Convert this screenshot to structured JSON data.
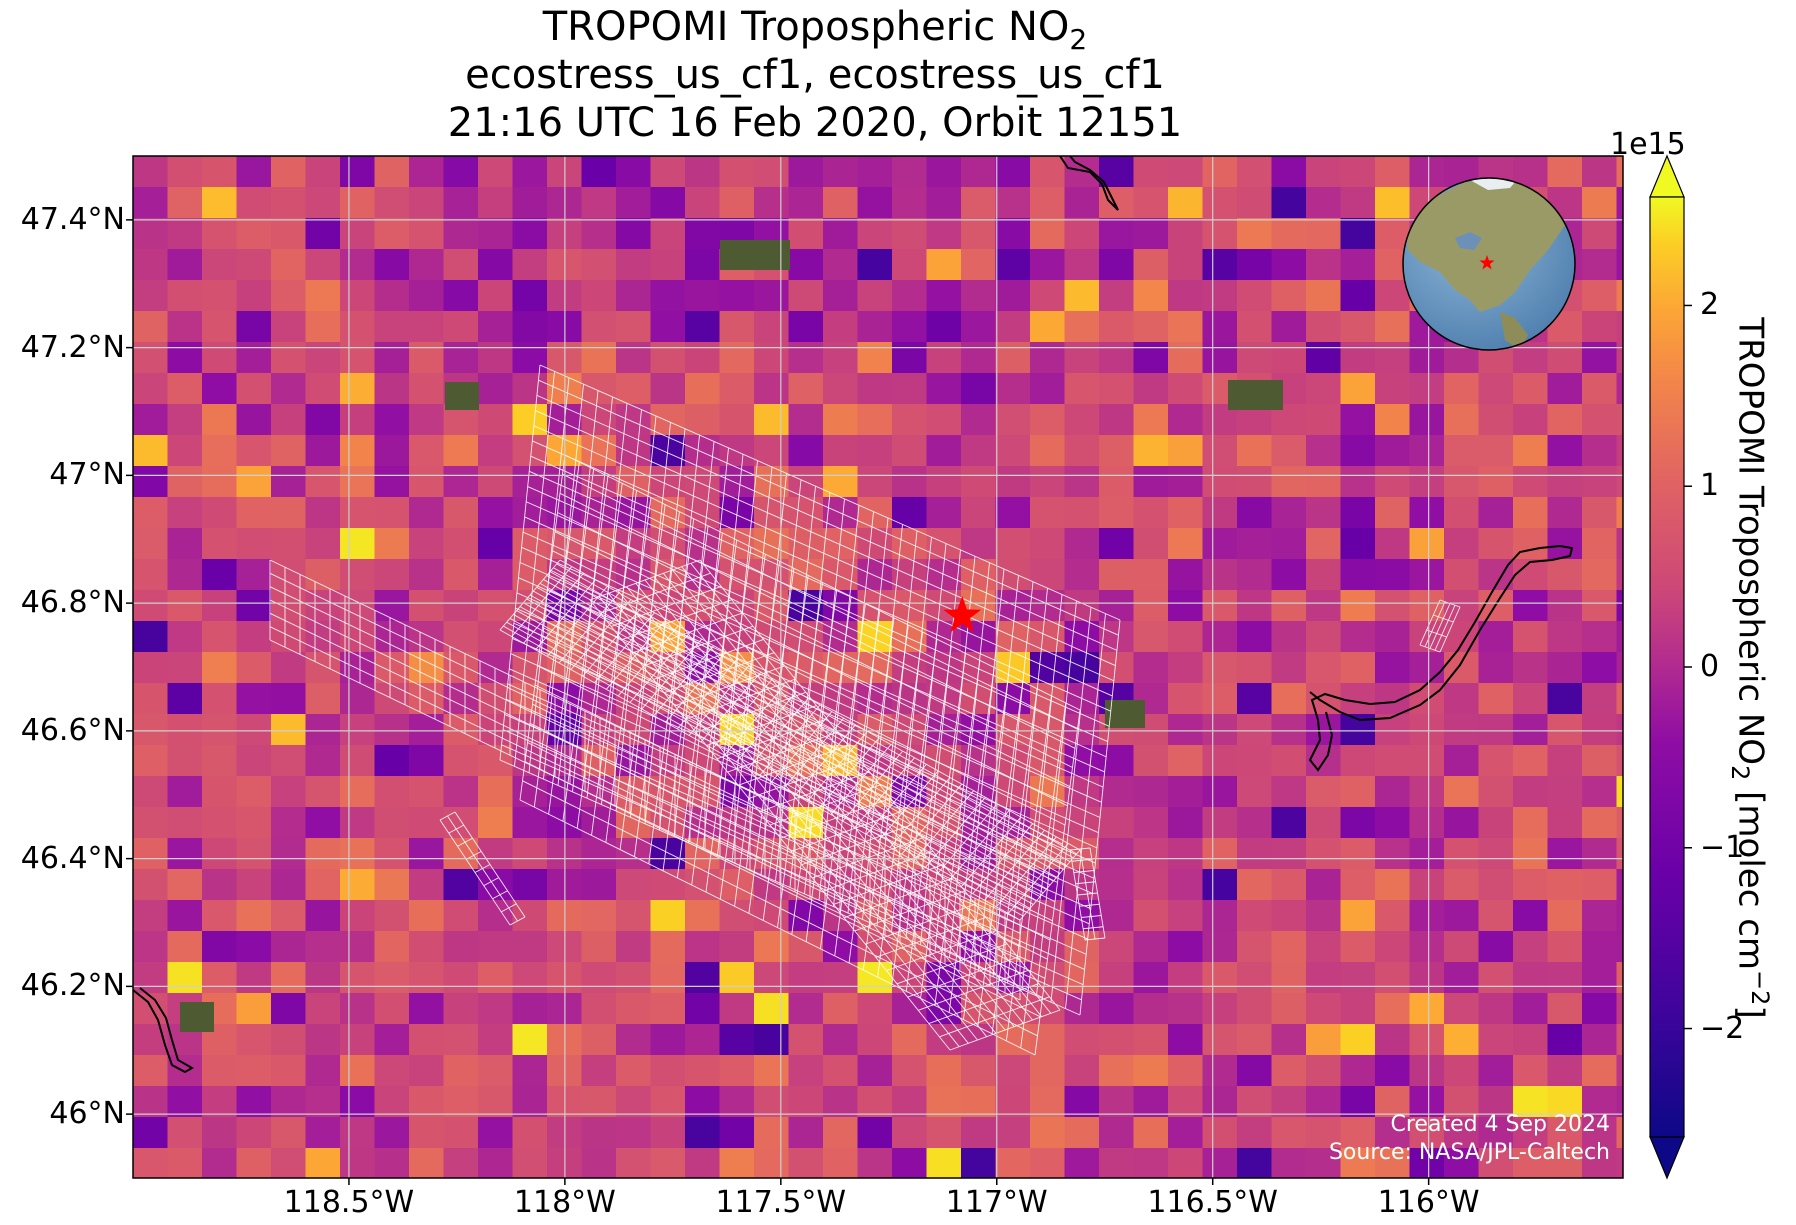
{
  "title": {
    "line1_main": "TROPOMI Tropospheric NO",
    "line1_sub": "2",
    "line2": "ecostress_us_cf1, ecostress_us_cf1",
    "line3": "21:16 UTC 16 Feb 2020, Orbit 12151"
  },
  "map": {
    "lat_ticks": [
      {
        "label": "47.4°N",
        "value": 47.4
      },
      {
        "label": "47.2°N",
        "value": 47.2
      },
      {
        "label": "47°N",
        "value": 47.0
      },
      {
        "label": "46.8°N",
        "value": 46.8
      },
      {
        "label": "46.6°N",
        "value": 46.6
      },
      {
        "label": "46.4°N",
        "value": 46.4
      },
      {
        "label": "46.2°N",
        "value": 46.2
      },
      {
        "label": "46°N",
        "value": 46.0
      }
    ],
    "lon_ticks": [
      {
        "label": "118.5°W",
        "value": -118.5
      },
      {
        "label": "118°W",
        "value": -118.0
      },
      {
        "label": "117.5°W",
        "value": -117.5
      },
      {
        "label": "117°W",
        "value": -117.0
      },
      {
        "label": "116.5°W",
        "value": -116.5
      },
      {
        "label": "116°W",
        "value": -116.0
      }
    ],
    "extent": {
      "lon_min": -119.0,
      "lon_max": -115.55,
      "lat_min": 45.9,
      "lat_max": 47.5
    },
    "site_marker": {
      "lon": -117.08,
      "lat": 46.78,
      "symbol": "red-star"
    },
    "colormap": "plasma",
    "gridlines": true
  },
  "colorbar": {
    "label_main": "TROPOMI Tropospheric NO",
    "label_sub": "2",
    "label_unit": " [molec cm",
    "label_sup": "−2",
    "label_end": "]",
    "exponent": "1e15",
    "min": -2.6,
    "max": 2.6,
    "ticks": [
      {
        "label": "2",
        "value": 2
      },
      {
        "label": "1",
        "value": 1
      },
      {
        "label": "0",
        "value": 0
      },
      {
        "label": "−1",
        "value": -1
      },
      {
        "label": "−2",
        "value": -2
      }
    ],
    "extend": "both"
  },
  "credits": {
    "created": "Created 4 Sep 2024",
    "source": "Source: NASA/JPL-Caltech"
  },
  "colors": {
    "marker": "#ff0000",
    "grid": "#cfcfcf",
    "footprint": "#ffffff"
  }
}
